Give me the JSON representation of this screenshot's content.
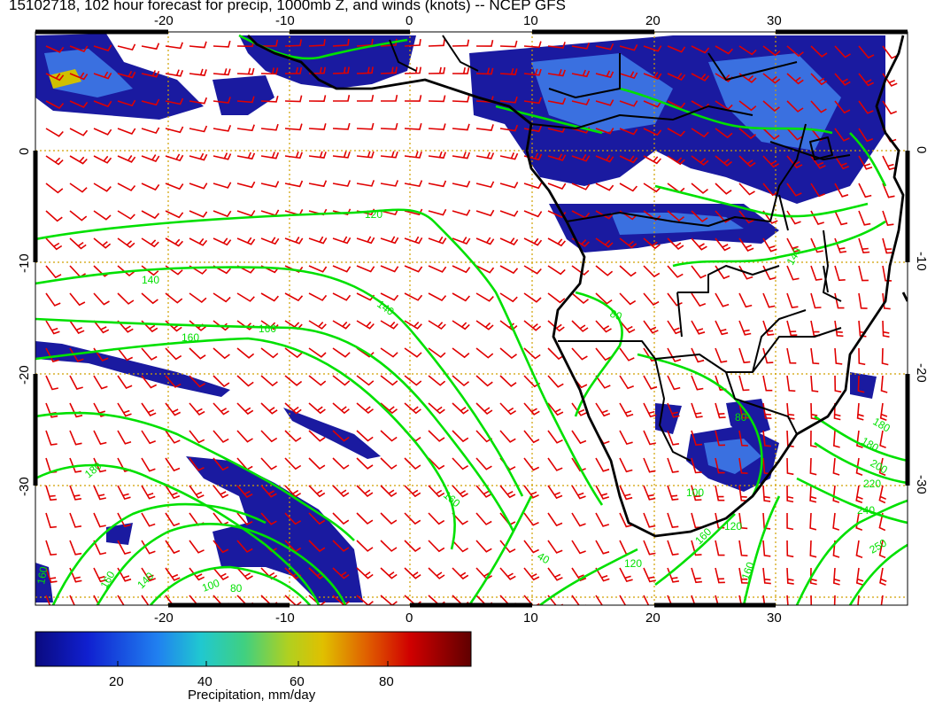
{
  "title": "15102718, 102 hour forecast for precip, 1000mb Z, and winds (knots) -- NCEP GFS",
  "map": {
    "lon_range": [
      -30,
      42
    ],
    "lat_range": [
      -40,
      10
    ],
    "grid_lons": [
      -20,
      -10,
      0,
      10,
      20,
      30
    ],
    "grid_lats": [
      0,
      -10,
      -20,
      -30
    ],
    "top_lon_labels": [
      "-20",
      "-10",
      "0",
      "10",
      "20",
      "30"
    ],
    "bottom_lon_labels": [
      "-20",
      "-10",
      "0",
      "10",
      "20",
      "30"
    ],
    "left_lat_labels": [
      "0",
      "-10",
      "-20",
      "-30"
    ],
    "right_lat_labels": [
      "0",
      "-10",
      "-20",
      "-30"
    ],
    "contour_labels": [
      "120",
      "140",
      "140",
      "160",
      "160",
      "160",
      "180",
      "160",
      "140",
      "100",
      "80",
      "40",
      "120",
      "160",
      "80",
      "80",
      "100",
      "120",
      "160",
      "180",
      "200",
      "220",
      "240",
      "250",
      "160",
      "140",
      "180"
    ],
    "colors": {
      "precip_low": "#1010a0",
      "precip_mid": "#3060e0",
      "contour": "#00e000",
      "wind_barb": "#e00000",
      "grid": "#d0a000",
      "coast": "#000000"
    }
  },
  "colorbar": {
    "ticks": [
      "20",
      "40",
      "60",
      "80"
    ],
    "title": "Precipitation, mm/day"
  }
}
